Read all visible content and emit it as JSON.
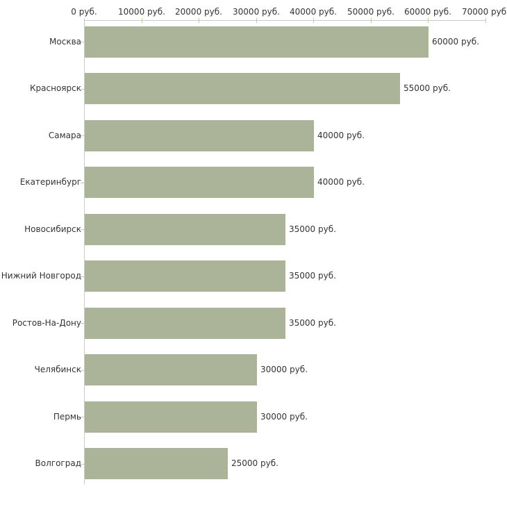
{
  "chart_data": {
    "type": "bar",
    "orientation": "horizontal",
    "title": "",
    "xlabel": "",
    "ylabel": "",
    "grid": false,
    "legend": false,
    "axis_position": "top",
    "categories": [
      "Москва",
      "Красноярск",
      "Самара",
      "Екатеринбург",
      "Новосибирск",
      "Нижний Новгород",
      "Ростов-На-Дону",
      "Челябинск",
      "Пермь",
      "Волгоград"
    ],
    "values": [
      60000,
      55000,
      40000,
      40000,
      35000,
      35000,
      35000,
      30000,
      30000,
      25000
    ],
    "value_labels": [
      "60000 руб.",
      "55000 руб.",
      "40000 руб.",
      "40000 руб.",
      "35000 руб.",
      "35000 руб.",
      "35000 руб.",
      "30000 руб.",
      "30000 руб.",
      "25000 руб."
    ],
    "xlim": [
      0,
      70000
    ],
    "x_ticks": [
      0,
      10000,
      20000,
      30000,
      40000,
      50000,
      60000,
      70000
    ],
    "x_tick_labels": [
      "0 руб.",
      "10000 руб.",
      "20000 руб.",
      "30000 руб.",
      "40000 руб.",
      "50000 руб.",
      "60000 руб.",
      "70000 руб."
    ],
    "colors": {
      "bar_fill": "#abb499",
      "axis_line": "#c9c9c9",
      "tick_mark": "#c9cba0",
      "text": "#333333",
      "background": "#ffffff"
    }
  }
}
